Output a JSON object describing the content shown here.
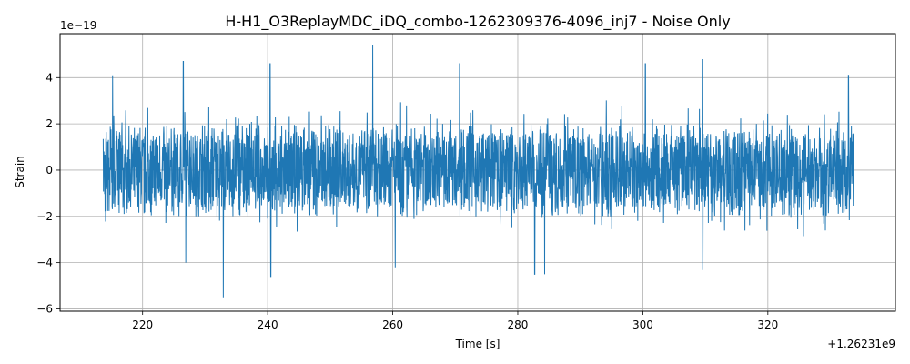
{
  "chart_data": {
    "type": "line",
    "title": "H-H1_O3ReplayMDC_iDQ_combo-1262309376-4096_inj7 - Noise Only",
    "xlabel": "Time [s]",
    "ylabel": "Strain",
    "x_offset_label": "+1.26231e9",
    "y_scale_label": "1e−19",
    "xlim": [
      206.8,
      340.4
    ],
    "ylim": [
      -6.1,
      5.9
    ],
    "x_ticks": [
      220,
      240,
      260,
      280,
      300,
      320
    ],
    "y_ticks": [
      -6,
      -4,
      -2,
      0,
      2,
      4
    ],
    "x_tick_labels": [
      "220",
      "240",
      "260",
      "280",
      "300",
      "320"
    ],
    "y_tick_labels": [
      "−6",
      "−4",
      "−2",
      "0",
      "2",
      "4"
    ],
    "grid": true,
    "legend": "none",
    "series": [
      {
        "color": "#1f77b4",
        "x_start": 213.7,
        "x_end": 333.7,
        "band": 1.6,
        "typical_peak": 3.0,
        "max": 5.4,
        "min": -5.5,
        "extremes": [
          {
            "x": 215.2,
            "y": 4.1
          },
          {
            "x": 226.5,
            "y": 4.7
          },
          {
            "x": 226.9,
            "y": -4.0
          },
          {
            "x": 232.9,
            "y": -5.5
          },
          {
            "x": 240.4,
            "y": 4.6
          },
          {
            "x": 240.5,
            "y": -4.6
          },
          {
            "x": 256.8,
            "y": 5.4
          },
          {
            "x": 260.4,
            "y": -4.2
          },
          {
            "x": 270.7,
            "y": 4.6
          },
          {
            "x": 282.7,
            "y": -4.5
          },
          {
            "x": 284.3,
            "y": -4.5
          },
          {
            "x": 300.4,
            "y": 4.6
          },
          {
            "x": 309.5,
            "y": 4.8
          },
          {
            "x": 309.6,
            "y": -4.3
          },
          {
            "x": 332.9,
            "y": 4.1
          }
        ]
      }
    ]
  }
}
